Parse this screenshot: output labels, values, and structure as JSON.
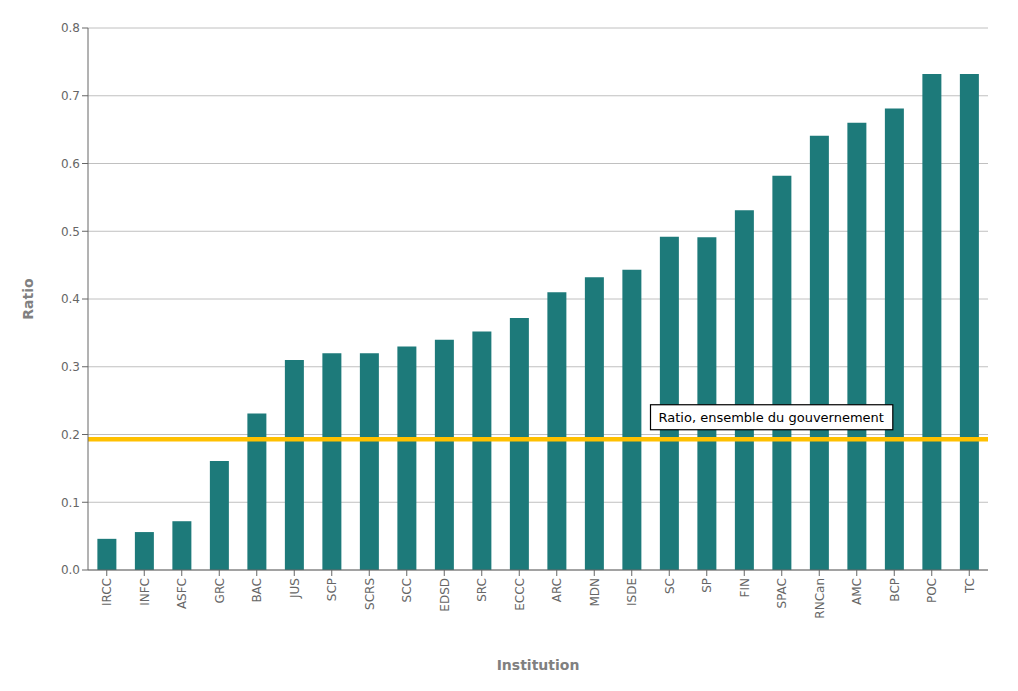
{
  "chart_data": {
    "type": "bar",
    "categories": [
      "IRCC",
      "INFC",
      "ASFC",
      "GRC",
      "BAC",
      "JUS",
      "SCP",
      "SCRS",
      "SCC",
      "EDSD",
      "SRC",
      "ECCC",
      "ARC",
      "MDN",
      "ISDE",
      "SC",
      "SP",
      "FIN",
      "SPAC",
      "RNCan",
      "AMC",
      "BCP",
      "POC",
      "TC"
    ],
    "values": [
      0.046,
      0.056,
      0.072,
      0.161,
      0.231,
      0.31,
      0.32,
      0.32,
      0.33,
      0.34,
      0.352,
      0.372,
      0.41,
      0.432,
      0.443,
      0.492,
      0.491,
      0.531,
      0.582,
      0.641,
      0.66,
      0.681,
      0.732,
      0.732
    ],
    "color": "#1D7A7A",
    "xlabel": "Institution",
    "ylabel": "Ratio",
    "ylim": [
      0,
      0.8
    ],
    "yticks": [
      {
        "value": 0,
        "label": "0.0"
      },
      0.1,
      0.2,
      0.3,
      0.4,
      0.5,
      0.6,
      0.7,
      0.8
    ],
    "grid": "y",
    "reference_lines": [
      {
        "value": 0.193,
        "label": "Ratio, ensemble du gouvernement",
        "color": "#FFC000"
      }
    ]
  }
}
